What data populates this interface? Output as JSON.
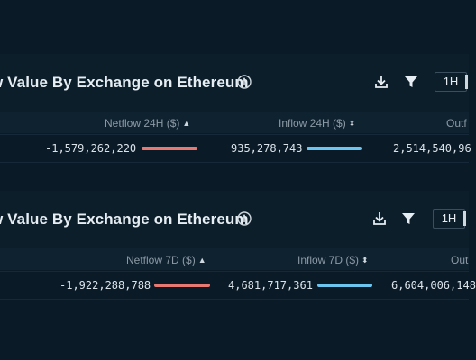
{
  "colors": {
    "netflow_bar": "#e87872",
    "inflow_bar": "#6cc5f0",
    "background": "#0a1a26"
  },
  "panels": [
    {
      "title": "w Value By Exchange on Ethereum",
      "range_label": "1H",
      "columns": {
        "netflow": "Netflow 24H ($)",
        "netflow_sort": "▲",
        "inflow": "Inflow 24H ($)",
        "inflow_sort": "⬍",
        "outflow": "Outf"
      },
      "row": {
        "netflow": "-1,579,262,220",
        "inflow": "935,278,743",
        "outflow": "2,514,540,96"
      },
      "icons": [
        "info-icon",
        "download-icon",
        "filter-icon"
      ]
    },
    {
      "title": "w Value By Exchange on Ethereum",
      "range_label": "1H",
      "columns": {
        "netflow": "Netflow 7D ($)",
        "netflow_sort": "▲",
        "inflow": "Inflow 7D ($)",
        "inflow_sort": "⬍",
        "outflow": "Out"
      },
      "row": {
        "netflow": "-1,922,288,788",
        "inflow": "4,681,717,361",
        "outflow": "6,604,006,148"
      },
      "icons": [
        "info-icon",
        "download-icon",
        "filter-icon"
      ]
    }
  ]
}
